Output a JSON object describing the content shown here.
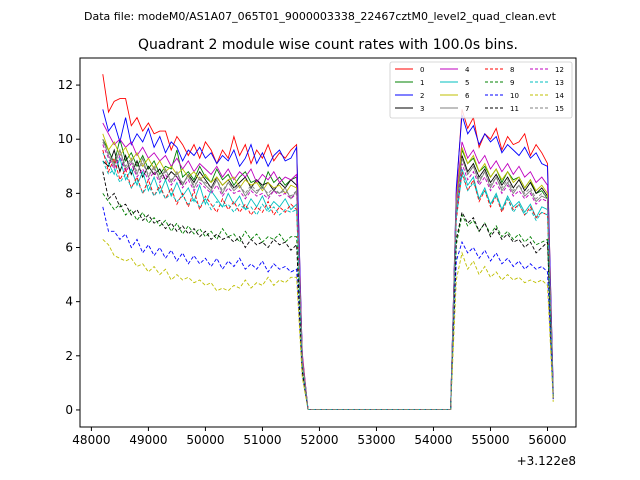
{
  "chart_data": {
    "type": "line",
    "suptitle": "Data file: modeM0/AS1A07_065T01_9000003338_22467cztM0_level2_quad_clean.evt",
    "title": "Quadrant 2 module wise count rates with 100.0s bins.",
    "xlabel": "",
    "ylabel": "",
    "x_offset_label": "+3.122e8",
    "xlim": [
      47800,
      56500
    ],
    "ylim": [
      -0.63,
      13.0
    ],
    "x_ticks": [
      48000,
      49000,
      50000,
      51000,
      52000,
      53000,
      54000,
      55000,
      56000
    ],
    "x_tick_labels": [
      "48000",
      "49000",
      "50000",
      "51000",
      "52000",
      "53000",
      "54000",
      "55000",
      "56000"
    ],
    "y_ticks": [
      0,
      2,
      4,
      6,
      8,
      10,
      12
    ],
    "y_tick_labels": [
      "0",
      "2",
      "4",
      "6",
      "8",
      "10",
      "12"
    ],
    "legend_position": "upper-right",
    "segments": [
      {
        "start": 48200,
        "end": 51800,
        "step": 100
      },
      {
        "start": 54300,
        "end": 56100,
        "step": 100
      }
    ],
    "series": [
      {
        "name": "0",
        "color": "#ff0000",
        "dash": false,
        "seg1": [
          12.4,
          11.0,
          11.4,
          11.5,
          11.5,
          10.5,
          10.8,
          10.3,
          10.6,
          10.2,
          10.3,
          10.3,
          9.6,
          10.1,
          9.8,
          9.4,
          9.8,
          9.3,
          9.9,
          9.6,
          9.1,
          9.6,
          9.3,
          10.1,
          9.4,
          9.8,
          9.1,
          9.6,
          9.3,
          9.8,
          9.2,
          9.5,
          9.3,
          9.6,
          9.8,
          1.8,
          0.02
        ],
        "seg2": [
          0.02,
          8.0,
          11.1,
          10.4,
          10.8,
          9.7,
          10.2,
          10.0,
          10.4,
          9.6,
          10.1,
          9.8,
          9.9,
          10.2,
          9.4,
          9.8,
          9.5,
          9.1,
          0.7
        ]
      },
      {
        "name": "1",
        "color": "#008000",
        "dash": false,
        "seg1": [
          10.0,
          9.6,
          9.1,
          10.0,
          9.2,
          9.5,
          9.0,
          9.4,
          8.9,
          9.2,
          8.7,
          9.0,
          8.9,
          9.6,
          8.6,
          8.8,
          8.5,
          9.0,
          8.6,
          8.4,
          8.9,
          8.5,
          8.7,
          8.3,
          8.6,
          8.8,
          8.4,
          8.5,
          8.2,
          8.8,
          8.4,
          8.6,
          8.3,
          8.5,
          8.6,
          2.0,
          0.02
        ],
        "seg2": [
          0.02,
          7.8,
          9.6,
          9.1,
          9.3,
          8.8,
          9.0,
          8.6,
          8.9,
          8.4,
          8.8,
          8.5,
          8.6,
          8.2,
          8.5,
          8.0,
          8.1,
          7.8,
          0.6
        ]
      },
      {
        "name": "2",
        "color": "#0000ff",
        "dash": false,
        "seg1": [
          11.1,
          10.3,
          10.6,
          9.9,
          10.8,
          9.8,
          10.2,
          9.9,
          10.4,
          9.7,
          10.1,
          9.5,
          9.9,
          9.7,
          9.2,
          9.6,
          9.4,
          9.7,
          9.3,
          9.5,
          9.1,
          9.4,
          9.2,
          9.6,
          9.0,
          9.3,
          9.8,
          9.1,
          9.5,
          9.0,
          9.4,
          9.6,
          9.2,
          9.3,
          9.7,
          2.0,
          0.02
        ],
        "seg2": [
          0.02,
          8.2,
          10.9,
          10.2,
          10.5,
          9.8,
          10.2,
          9.9,
          10.1,
          9.5,
          9.8,
          9.6,
          9.4,
          9.7,
          9.3,
          9.5,
          9.1,
          9.0,
          0.8
        ]
      },
      {
        "name": "3",
        "color": "#000000",
        "dash": false,
        "seg1": [
          9.2,
          9.0,
          9.6,
          8.8,
          9.4,
          8.7,
          9.2,
          8.6,
          9.0,
          8.7,
          8.9,
          8.5,
          8.8,
          8.6,
          8.3,
          8.7,
          8.4,
          8.8,
          8.5,
          8.2,
          8.6,
          8.3,
          8.5,
          8.2,
          8.4,
          8.6,
          8.2,
          8.5,
          8.3,
          8.4,
          8.1,
          8.4,
          8.2,
          8.5,
          8.3,
          1.9,
          0.02
        ],
        "seg2": [
          0.02,
          7.6,
          9.4,
          8.8,
          9.1,
          8.6,
          8.9,
          8.4,
          8.7,
          8.3,
          8.6,
          8.2,
          8.5,
          8.1,
          8.4,
          8.0,
          8.2,
          7.9,
          0.5
        ]
      },
      {
        "name": "4",
        "color": "#bf00bf",
        "dash": false,
        "seg1": [
          10.6,
          10.2,
          9.8,
          10.0,
          9.7,
          9.9,
          9.4,
          9.7,
          9.3,
          9.5,
          9.2,
          9.4,
          9.0,
          9.3,
          8.9,
          9.2,
          8.8,
          9.1,
          8.9,
          8.7,
          9.0,
          8.6,
          8.9,
          8.5,
          8.8,
          8.6,
          8.9,
          8.4,
          8.7,
          8.5,
          8.8,
          8.4,
          8.6,
          8.5,
          8.7,
          2.1,
          0.02
        ],
        "seg2": [
          0.02,
          7.9,
          9.9,
          9.3,
          9.6,
          9.1,
          9.4,
          8.9,
          9.2,
          8.8,
          9.1,
          8.7,
          9.0,
          8.6,
          8.8,
          8.4,
          8.6,
          8.3,
          0.6
        ]
      },
      {
        "name": "5",
        "color": "#00bfbf",
        "dash": false,
        "seg1": [
          9.5,
          9.1,
          8.7,
          9.3,
          8.5,
          8.9,
          8.3,
          8.8,
          8.1,
          8.6,
          8.0,
          8.5,
          7.9,
          8.4,
          7.9,
          8.2,
          7.7,
          8.3,
          7.6,
          8.1,
          7.8,
          7.5,
          8.0,
          7.6,
          7.9,
          7.4,
          7.8,
          7.5,
          7.9,
          7.4,
          7.7,
          7.5,
          7.8,
          7.4,
          7.6,
          1.8,
          0.02
        ],
        "seg2": [
          0.02,
          7.2,
          8.9,
          8.3,
          8.6,
          7.8,
          8.2,
          7.6,
          8.0,
          7.4,
          7.9,
          7.5,
          7.7,
          7.3,
          7.6,
          7.1,
          7.5,
          7.4,
          0.5
        ]
      },
      {
        "name": "6",
        "color": "#bfbf00",
        "dash": false,
        "seg1": [
          10.2,
          9.6,
          9.9,
          9.4,
          9.7,
          9.2,
          9.5,
          9.0,
          9.3,
          8.9,
          9.2,
          8.8,
          9.0,
          8.7,
          8.9,
          8.6,
          8.8,
          8.5,
          8.7,
          8.4,
          8.6,
          8.3,
          8.5,
          8.6,
          8.2,
          8.5,
          8.3,
          8.4,
          8.1,
          8.4,
          8.2,
          8.3,
          8.0,
          8.3,
          8.2,
          1.9,
          0.02
        ],
        "seg2": [
          0.02,
          7.7,
          9.7,
          9.1,
          9.4,
          8.8,
          9.1,
          8.6,
          8.9,
          8.5,
          8.8,
          8.4,
          8.6,
          8.2,
          8.5,
          8.1,
          8.3,
          8.0,
          0.5
        ]
      },
      {
        "name": "7",
        "color": "#808080",
        "dash": false,
        "seg1": [
          10.0,
          9.4,
          9.0,
          9.6,
          8.9,
          9.2,
          8.7,
          9.3,
          8.6,
          9.0,
          8.5,
          8.9,
          8.4,
          8.8,
          8.3,
          8.7,
          8.2,
          8.6,
          8.3,
          8.1,
          8.5,
          8.0,
          8.4,
          8.1,
          8.3,
          7.9,
          8.2,
          8.0,
          8.3,
          7.9,
          8.1,
          8.0,
          8.2,
          7.8,
          8.1,
          1.8,
          0.02
        ],
        "seg2": [
          0.02,
          7.5,
          9.3,
          8.7,
          9.0,
          8.4,
          8.8,
          8.2,
          8.6,
          8.1,
          8.4,
          8.0,
          8.3,
          7.9,
          8.1,
          7.7,
          7.9,
          7.8,
          0.5
        ]
      },
      {
        "name": "8",
        "color": "#ff0000",
        "dash": true,
        "seg1": [
          9.6,
          8.8,
          9.3,
          8.5,
          8.9,
          8.2,
          8.6,
          8.0,
          8.5,
          7.9,
          8.3,
          7.8,
          8.2,
          7.6,
          8.0,
          7.5,
          8.1,
          7.4,
          7.9,
          7.6,
          7.3,
          7.8,
          7.4,
          7.7,
          7.3,
          7.6,
          7.2,
          7.5,
          7.3,
          7.7,
          7.2,
          7.5,
          7.3,
          7.6,
          7.4,
          1.7,
          0.02
        ],
        "seg2": [
          0.02,
          7.0,
          8.8,
          8.1,
          8.5,
          7.7,
          8.1,
          7.5,
          7.9,
          7.3,
          7.8,
          7.4,
          7.6,
          7.2,
          7.5,
          7.1,
          7.3,
          7.2,
          0.5
        ]
      },
      {
        "name": "9",
        "color": "#008000",
        "dash": true,
        "seg1": [
          8.0,
          7.7,
          7.4,
          7.6,
          7.2,
          7.4,
          7.0,
          7.3,
          6.9,
          7.1,
          6.8,
          7.0,
          6.6,
          6.9,
          6.5,
          6.8,
          6.5,
          6.7,
          6.4,
          6.6,
          6.3,
          6.7,
          6.4,
          6.5,
          6.2,
          6.6,
          6.3,
          6.5,
          6.2,
          6.4,
          6.3,
          6.5,
          6.2,
          6.4,
          6.4,
          1.5,
          0.02
        ],
        "seg2": [
          0.02,
          6.1,
          7.2,
          6.8,
          7.0,
          6.6,
          6.9,
          6.5,
          6.8,
          6.4,
          6.6,
          6.3,
          6.5,
          6.2,
          6.4,
          6.1,
          6.2,
          6.3,
          0.5
        ]
      },
      {
        "name": "10",
        "color": "#0000ff",
        "dash": true,
        "seg1": [
          7.5,
          6.6,
          6.6,
          6.3,
          6.5,
          6.0,
          6.3,
          5.8,
          6.1,
          5.7,
          6.0,
          5.6,
          5.9,
          5.5,
          5.8,
          5.4,
          5.7,
          5.4,
          5.6,
          5.3,
          5.6,
          5.2,
          5.5,
          5.3,
          5.6,
          5.2,
          5.4,
          5.2,
          5.5,
          5.1,
          5.4,
          5.2,
          5.3,
          5.1,
          5.2,
          1.3,
          0.02
        ],
        "seg2": [
          0.02,
          5.5,
          6.2,
          5.8,
          6.0,
          5.6,
          5.9,
          5.5,
          5.8,
          5.4,
          5.6,
          5.3,
          5.5,
          5.2,
          5.4,
          5.2,
          5.3,
          5.1,
          0.4
        ]
      },
      {
        "name": "11",
        "color": "#000000",
        "dash": true,
        "seg1": [
          8.8,
          7.8,
          8.0,
          7.5,
          7.6,
          7.2,
          7.4,
          7.0,
          7.2,
          6.9,
          7.0,
          6.7,
          6.9,
          6.6,
          6.8,
          6.5,
          6.7,
          6.4,
          6.6,
          6.3,
          6.5,
          6.3,
          6.4,
          6.2,
          6.4,
          6.0,
          6.3,
          6.1,
          6.2,
          6.0,
          6.3,
          6.1,
          6.2,
          5.9,
          6.1,
          1.4,
          0.02
        ],
        "seg2": [
          0.02,
          6.3,
          7.3,
          6.9,
          7.1,
          6.6,
          6.9,
          6.4,
          6.7,
          6.3,
          6.5,
          6.2,
          6.3,
          6.0,
          6.2,
          5.8,
          6.0,
          6.2,
          0.4
        ]
      },
      {
        "name": "12",
        "color": "#bf00bf",
        "dash": true,
        "seg1": [
          9.8,
          9.3,
          8.9,
          9.4,
          8.8,
          9.1,
          8.6,
          8.9,
          8.5,
          8.8,
          8.4,
          8.7,
          8.3,
          8.6,
          8.2,
          8.5,
          8.1,
          8.4,
          8.2,
          8.0,
          8.3,
          7.9,
          8.2,
          8.0,
          8.1,
          7.8,
          8.1,
          7.9,
          8.0,
          7.8,
          8.1,
          7.9,
          8.0,
          7.8,
          8.0,
          1.8,
          0.02
        ],
        "seg2": [
          0.02,
          7.4,
          9.1,
          8.5,
          8.8,
          8.3,
          8.6,
          8.1,
          8.4,
          8.0,
          8.3,
          7.9,
          8.1,
          7.8,
          8.0,
          7.6,
          7.8,
          7.7,
          0.5
        ]
      },
      {
        "name": "13",
        "color": "#00bfbf",
        "dash": true,
        "seg1": [
          9.2,
          8.7,
          8.9,
          8.4,
          8.7,
          8.2,
          8.5,
          8.0,
          8.3,
          7.9,
          8.2,
          7.8,
          8.0,
          7.7,
          7.9,
          7.6,
          7.8,
          7.5,
          7.8,
          7.4,
          7.7,
          7.5,
          7.6,
          7.3,
          7.6,
          7.4,
          7.5,
          7.2,
          7.6,
          7.3,
          7.5,
          7.2,
          7.4,
          7.3,
          7.4,
          1.7,
          0.02
        ],
        "seg2": [
          0.02,
          7.1,
          8.7,
          8.1,
          8.4,
          7.8,
          8.1,
          7.6,
          7.9,
          7.4,
          7.8,
          7.3,
          7.6,
          7.2,
          7.4,
          7.0,
          7.3,
          7.2,
          0.5
        ]
      },
      {
        "name": "14",
        "color": "#bfbf00",
        "dash": true,
        "seg1": [
          6.3,
          6.1,
          5.7,
          5.6,
          5.5,
          5.6,
          5.3,
          5.4,
          5.1,
          5.3,
          5.0,
          5.2,
          4.8,
          5.0,
          4.8,
          4.9,
          4.7,
          4.8,
          4.6,
          4.7,
          4.4,
          4.5,
          4.4,
          4.6,
          4.5,
          4.8,
          4.5,
          4.7,
          4.6,
          4.9,
          4.6,
          4.8,
          4.7,
          4.9,
          4.9,
          1.2,
          0.02
        ],
        "seg2": [
          0.02,
          4.8,
          5.8,
          5.2,
          5.5,
          5.0,
          5.3,
          4.9,
          5.1,
          4.8,
          5.0,
          4.8,
          4.9,
          4.7,
          4.8,
          4.7,
          4.8,
          4.6,
          0.3
        ]
      },
      {
        "name": "15",
        "color": "#808080",
        "dash": true,
        "seg1": [
          9.9,
          9.5,
          9.1,
          9.6,
          9.0,
          9.3,
          8.8,
          9.1,
          8.7,
          8.9,
          8.6,
          8.8,
          8.5,
          8.7,
          8.4,
          8.6,
          8.3,
          8.5,
          8.4,
          8.2,
          8.5,
          8.1,
          8.4,
          8.2,
          8.3,
          8.0,
          8.3,
          8.1,
          8.2,
          8.0,
          8.2,
          8.0,
          8.1,
          7.9,
          8.1,
          1.8,
          0.02
        ],
        "seg2": [
          0.02,
          7.6,
          9.3,
          8.7,
          9.0,
          8.5,
          8.8,
          8.3,
          8.6,
          8.2,
          8.5,
          8.1,
          8.3,
          8.0,
          8.2,
          7.8,
          8.0,
          7.9,
          0.5
        ]
      }
    ]
  }
}
